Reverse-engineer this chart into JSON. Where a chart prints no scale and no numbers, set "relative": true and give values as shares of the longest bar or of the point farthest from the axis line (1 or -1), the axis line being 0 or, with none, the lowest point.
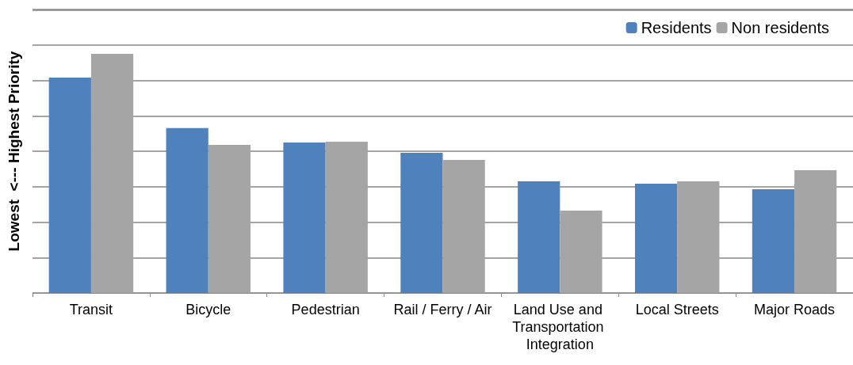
{
  "chart_data": {
    "type": "bar",
    "relative": true,
    "ylabel": "Lowest  <--- Highest Priority",
    "categories": [
      "Transit",
      "Bicycle",
      "Pedestrian",
      "Rail / Ferry / Air",
      "Land Use and Transportation Integration",
      "Local Streets",
      "Major Roads"
    ],
    "series": [
      {
        "name": "Residents",
        "color": "#4f81bd",
        "values": [
          0.9,
          0.689,
          0.629,
          0.586,
          0.467,
          0.457,
          0.434
        ]
      },
      {
        "name": "Non residents",
        "color": "#a5a5a5",
        "values": [
          1,
          0.619,
          0.632,
          0.556,
          0.344,
          0.467,
          0.513
        ]
      }
    ],
    "grid": "y",
    "legend": "top right"
  }
}
